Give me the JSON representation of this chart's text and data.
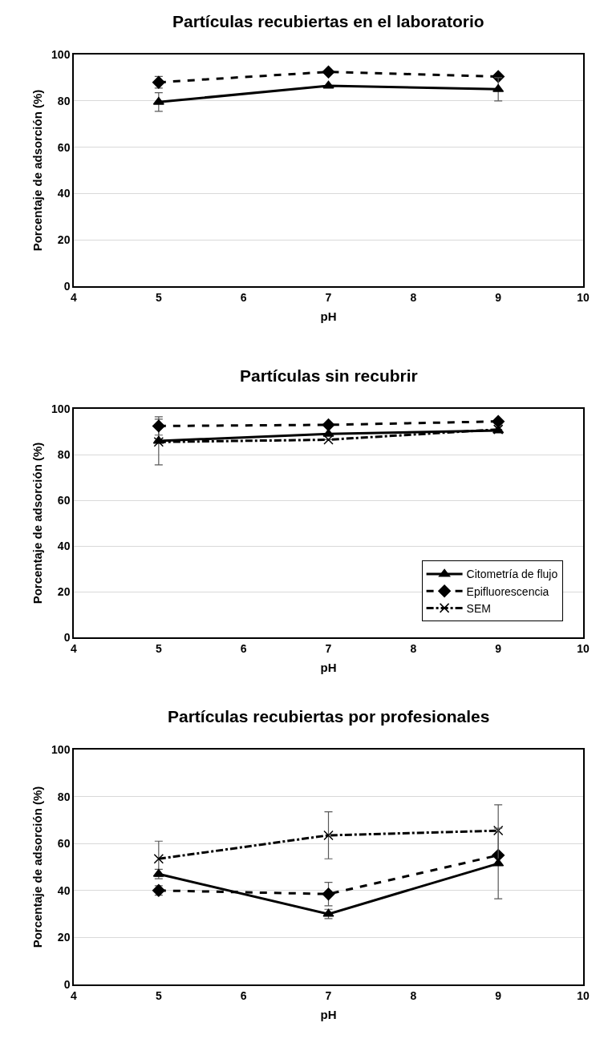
{
  "chart_data": [
    {
      "type": "line",
      "title": "Partículas recubiertas en el laboratorio",
      "xlabel": "pH",
      "ylabel": "Porcentaje de adsorción (%)",
      "x": [
        5,
        7,
        9
      ],
      "xlim": [
        4,
        10
      ],
      "xticks": [
        4,
        5,
        6,
        7,
        8,
        9,
        10
      ],
      "ylim": [
        0,
        100
      ],
      "yticks": [
        0,
        20,
        40,
        60,
        80,
        100
      ],
      "grid": "y",
      "legend": false,
      "series": [
        {
          "color": "#000000",
          "marker": "triangle",
          "line_style": "solid",
          "values": [
            79.5,
            86.5,
            85
          ],
          "errors": [
            4,
            null,
            5
          ]
        },
        {
          "color": "#000000",
          "marker": "diamond",
          "line_style": "dashed",
          "values": [
            88,
            92.5,
            90.5
          ],
          "errors": [
            2.5,
            null,
            null
          ]
        }
      ]
    },
    {
      "type": "line",
      "title": "Partículas sin recubrir",
      "xlabel": "pH",
      "ylabel": "Porcentaje de adsorción (%)",
      "x": [
        5,
        7,
        9
      ],
      "xlim": [
        4,
        10
      ],
      "xticks": [
        4,
        5,
        6,
        7,
        8,
        9,
        10
      ],
      "ylim": [
        0,
        100
      ],
      "yticks": [
        0,
        20,
        40,
        60,
        80,
        100
      ],
      "grid": "y",
      "legend": "bottom right",
      "series": [
        {
          "name": "Citometría de flujo",
          "color": "#000000",
          "marker": "triangle",
          "line_style": "solid",
          "values": [
            86,
            89,
            90.5
          ],
          "errors": [
            null,
            null,
            null
          ]
        },
        {
          "name": "Epifluorescencia",
          "color": "#000000",
          "marker": "diamond",
          "line_style": "dashed",
          "values": [
            92.5,
            93,
            94.5
          ],
          "errors": [
            4,
            null,
            null
          ]
        },
        {
          "name": "SEM",
          "color": "#000000",
          "marker": "cross",
          "line_style": "dashdot",
          "values": [
            85.5,
            86.5,
            91
          ],
          "errors": [
            10,
            null,
            null
          ]
        }
      ]
    },
    {
      "type": "line",
      "title": "Partículas recubiertas por profesionales",
      "xlabel": "pH",
      "ylabel": "Porcentaje de adsorción (%)",
      "x": [
        5,
        7,
        9
      ],
      "xlim": [
        4,
        10
      ],
      "xticks": [
        4,
        5,
        6,
        7,
        8,
        9,
        10
      ],
      "ylim": [
        0,
        100
      ],
      "yticks": [
        0,
        20,
        40,
        60,
        80,
        100
      ],
      "grid": "y",
      "legend": false,
      "series": [
        {
          "color": "#000000",
          "marker": "triangle",
          "line_style": "solid",
          "values": [
            47,
            30,
            51.5
          ],
          "errors": [
            2,
            2,
            15
          ]
        },
        {
          "color": "#000000",
          "marker": "diamond",
          "line_style": "dashed",
          "values": [
            40,
            38.5,
            55
          ],
          "errors": [
            2,
            5,
            null
          ]
        },
        {
          "color": "#000000",
          "marker": "cross",
          "line_style": "dashdot",
          "values": [
            53.5,
            63.5,
            65.5
          ],
          "errors": [
            7.5,
            10,
            11
          ]
        }
      ]
    }
  ]
}
